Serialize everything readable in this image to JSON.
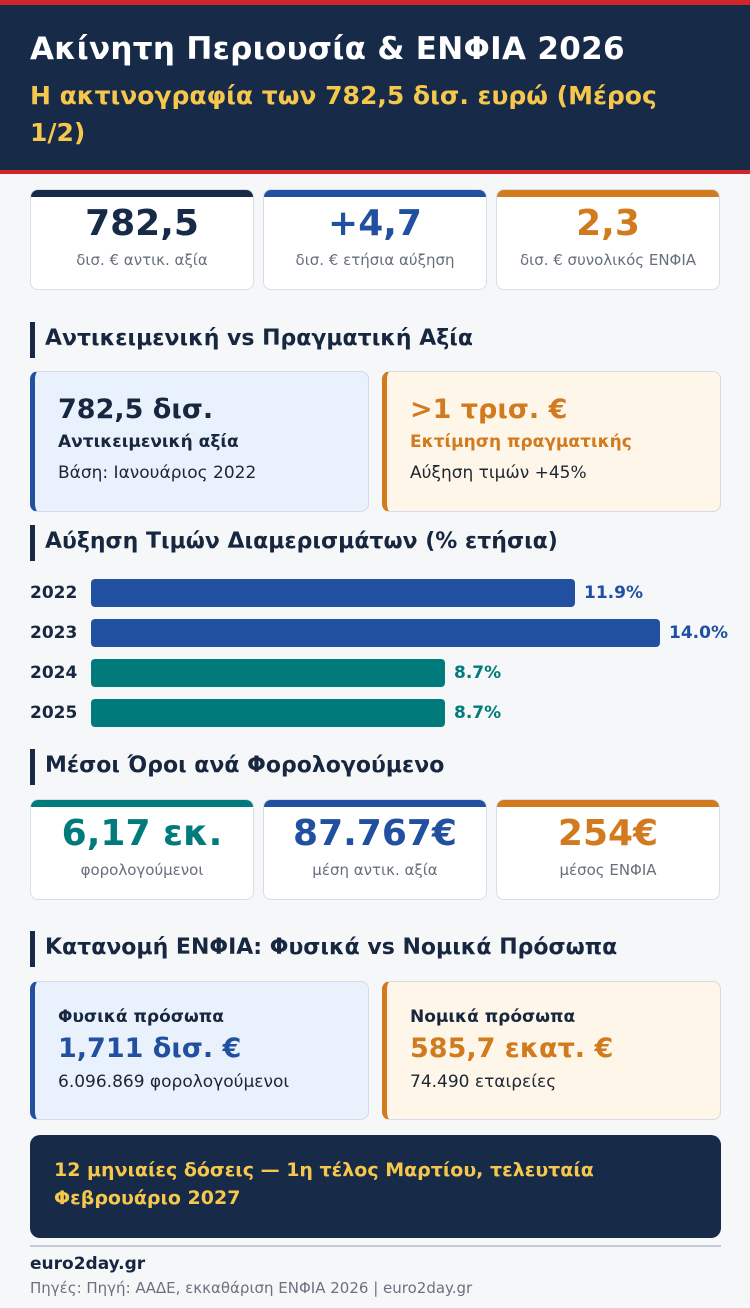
{
  "header": {
    "title": "Ακίνητη Περιουσία & ΕΝΦΙΑ 2026",
    "subtitle": "Η ακτινογραφία των 782,5 δισ. ευρώ (Μέρος 1/2)"
  },
  "kpis": [
    {
      "value": "782,5",
      "label": "δισ. € αντικ. αξία",
      "color": "#172a48"
    },
    {
      "value": "+4,7",
      "label": "δισ. € ετήσια αύξηση",
      "color": "#2250a0"
    },
    {
      "value": "2,3",
      "label": "δισ. € συνολικός ΕΝΦΙΑ",
      "color": "#d17a1e"
    }
  ],
  "section_value": {
    "title": "Αντικειμενική vs Πραγματική Αξία",
    "objective": {
      "big": "782,5 δισ.",
      "label": "Αντικειμενική αξία",
      "note": "Βάση: Ιανουάριος 2022"
    },
    "real": {
      "big": ">1 τρισ. €",
      "label": "Εκτίμηση πραγματικής",
      "note": "Αύξηση τιμών +45%"
    }
  },
  "section_growth": {
    "title": "Αύξηση Τιμών Διαμερισμάτων (% ετήσια)"
  },
  "chart_data": {
    "type": "bar",
    "orientation": "horizontal",
    "categories": [
      "2022",
      "2023",
      "2024",
      "2025"
    ],
    "values": [
      11.9,
      14.0,
      8.7,
      8.7
    ],
    "value_labels": [
      "11.9%",
      "14.0%",
      "8.7%",
      "8.7%"
    ],
    "colors": [
      "#2250a0",
      "#2250a0",
      "#007a7a",
      "#007a7a"
    ],
    "xlim": [
      0,
      14.0
    ]
  },
  "section_avg": {
    "title": "Μέσοι Όροι ανά Φορολογούμενο",
    "cards": [
      {
        "value": "6,17 εκ.",
        "label": "φορολογούμενοι",
        "color": "#007a7a"
      },
      {
        "value": "87.767€",
        "label": "μέση αντικ. αξία",
        "color": "#2250a0"
      },
      {
        "value": "254€",
        "label": "μέσος ΕΝΦΙΑ",
        "color": "#d17a1e"
      }
    ]
  },
  "section_split": {
    "title": "Κατανομή ΕΝΦΙΑ: Φυσικά vs Νομικά Πρόσωπα",
    "physical": {
      "label": "Φυσικά πρόσωπα",
      "big": "1,711 δισ. €",
      "note": "6.096.869 φορολογούμενοι"
    },
    "legal": {
      "label": "Νομικά πρόσωπα",
      "big": "585,7 εκατ. €",
      "note": "74.490 εταιρείες"
    }
  },
  "banner": {
    "text": "12 μηνιαίες δόσεις — 1η τέλος Μαρτίου, τελευταία Φεβρουάριο 2027"
  },
  "footer": {
    "brand": "euro2day.gr",
    "sources": "Πηγές: Πηγή: ΑΑΔΕ, εκκαθάριση ΕΝΦΙΑ 2026 | euro2day.gr"
  },
  "colors": {
    "navy": "#172a48",
    "blue": "#2250a0",
    "teal": "#007a7a",
    "orange": "#d17a1e",
    "gold": "#f5c74c",
    "red": "#d2242b"
  }
}
